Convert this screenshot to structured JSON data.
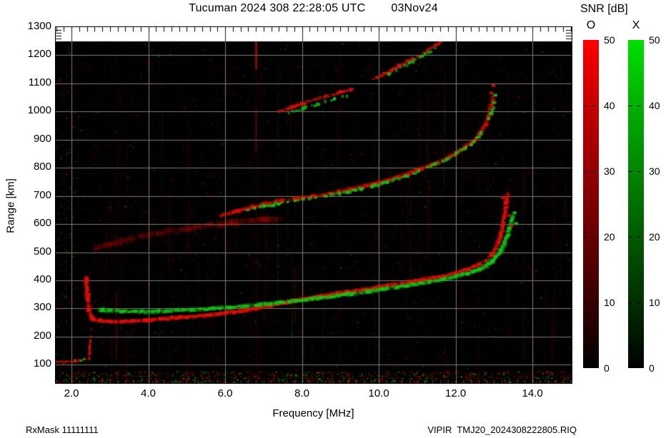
{
  "title": {
    "main": "Tucuman 2024 308 22:28:05 UTC",
    "date": "03Nov24"
  },
  "footer": {
    "left": "RxMask 11111111",
    "right": "VIPIR  TMJ20_2024308222805.RIQ"
  },
  "legend": {
    "title": "SNR [dB]",
    "bars": [
      {
        "label": "O",
        "color": "#ff0000",
        "ticks": [
          "50",
          "40",
          "30",
          "20",
          "10",
          "0"
        ]
      },
      {
        "label": "X",
        "color": "#00e000",
        "ticks": [
          "50",
          "40",
          "30",
          "20",
          "10",
          "0"
        ]
      }
    ]
  },
  "chart_data": {
    "type": "heatmap",
    "title": "Tucuman 2024 308 22:28:05 UTC",
    "date": "03Nov24",
    "xlabel": "Frequency [MHz]",
    "ylabel": "Range [km]",
    "xlim": [
      1.59,
      15.02
    ],
    "ylim": [
      35,
      1300
    ],
    "xticks": [
      2,
      4,
      6,
      8,
      10,
      12,
      14
    ],
    "xtick_labels": [
      "2.0",
      "4.0",
      "6.0",
      "8.0",
      "10.0",
      "12.0",
      "14.0"
    ],
    "yticks": [
      100,
      200,
      300,
      400,
      500,
      600,
      700,
      800,
      900,
      1000,
      1100,
      1200,
      1300
    ],
    "grid": true,
    "grid_color": "#7d7d7d",
    "background": "#000000",
    "colorbar": {
      "label": "SNR [dB]",
      "range": [
        0,
        50
      ],
      "o_color": "#ff0000",
      "x_color": "#00e000"
    },
    "colors": {
      "o": "#e01008",
      "x": "#17c417",
      "o_noise": "#c80000",
      "x_noise": "#00b400"
    },
    "noise": {
      "seed": 20241103,
      "specks": 2600,
      "bottom_band": 1300,
      "striations": 110,
      "left_band": 160
    },
    "traces": [
      {
        "name": "F-hop1-O",
        "mode": "O",
        "w": 5,
        "h": 4,
        "step": 3,
        "jitter": 1.2,
        "alpha": 0.95,
        "gap": 0.04,
        "halo": true,
        "points": [
          [
            2.38,
            408
          ],
          [
            2.4,
            372
          ],
          [
            2.43,
            330
          ],
          [
            2.46,
            296
          ],
          [
            2.5,
            272
          ],
          [
            2.56,
            262
          ],
          [
            2.75,
            257
          ],
          [
            3.0,
            254
          ],
          [
            3.3,
            253
          ],
          [
            3.6,
            255
          ],
          [
            4.0,
            259
          ],
          [
            4.4,
            263
          ],
          [
            4.8,
            268
          ],
          [
            5.2,
            272
          ],
          [
            5.6,
            277
          ],
          [
            6.0,
            283
          ],
          [
            6.4,
            290
          ],
          [
            6.8,
            299
          ],
          [
            7.2,
            310
          ],
          [
            7.6,
            322
          ],
          [
            8.0,
            333
          ],
          [
            8.4,
            342
          ],
          [
            8.8,
            351
          ],
          [
            9.2,
            359
          ],
          [
            9.6,
            367
          ],
          [
            10.0,
            376
          ],
          [
            10.4,
            385
          ],
          [
            10.8,
            394
          ],
          [
            11.2,
            403
          ],
          [
            11.6,
            413
          ],
          [
            12.0,
            426
          ],
          [
            12.3,
            439
          ],
          [
            12.6,
            455
          ],
          [
            12.8,
            472
          ],
          [
            12.95,
            492
          ],
          [
            13.05,
            514
          ],
          [
            13.12,
            538
          ],
          [
            13.18,
            565
          ],
          [
            13.23,
            594
          ],
          [
            13.27,
            625
          ],
          [
            13.3,
            655
          ],
          [
            13.32,
            682
          ],
          [
            13.34,
            706
          ]
        ]
      },
      {
        "name": "F-hop1-X",
        "mode": "X",
        "w": 5,
        "h": 4,
        "step": 3,
        "jitter": 1.2,
        "alpha": 0.9,
        "gap": 0.15,
        "halo": true,
        "points": [
          [
            2.74,
            296
          ],
          [
            3.0,
            292
          ],
          [
            3.3,
            289
          ],
          [
            3.7,
            288
          ],
          [
            4.1,
            289
          ],
          [
            4.5,
            291
          ],
          [
            4.9,
            294
          ],
          [
            5.3,
            297
          ],
          [
            5.7,
            300
          ],
          [
            6.1,
            304
          ],
          [
            6.5,
            309
          ],
          [
            6.9,
            314
          ],
          [
            7.3,
            319
          ],
          [
            7.7,
            325
          ],
          [
            8.1,
            331
          ],
          [
            8.5,
            338
          ],
          [
            8.9,
            345
          ],
          [
            9.3,
            352
          ],
          [
            9.7,
            360
          ],
          [
            10.1,
            368
          ],
          [
            10.5,
            376
          ],
          [
            10.9,
            385
          ],
          [
            11.3,
            394
          ],
          [
            11.7,
            404
          ],
          [
            12.0,
            413
          ],
          [
            12.3,
            424
          ],
          [
            12.6,
            438
          ],
          [
            12.8,
            452
          ],
          [
            12.95,
            468
          ],
          [
            13.08,
            487
          ],
          [
            13.18,
            508
          ],
          [
            13.27,
            532
          ],
          [
            13.34,
            558
          ],
          [
            13.4,
            586
          ],
          [
            13.45,
            612
          ],
          [
            13.49,
            636
          ]
        ]
      },
      {
        "name": "F-hop2-diffuse-O",
        "mode": "O",
        "w": 10,
        "h": 7,
        "step": 4,
        "jitter": 2.6,
        "alpha": 0.2,
        "gap": 0.15,
        "points": [
          [
            2.62,
            512
          ],
          [
            2.9,
            524
          ],
          [
            3.2,
            536
          ],
          [
            3.5,
            546
          ],
          [
            3.8,
            555
          ],
          [
            4.1,
            563
          ],
          [
            4.4,
            570
          ],
          [
            4.7,
            577
          ],
          [
            5.0,
            583
          ],
          [
            5.3,
            589
          ],
          [
            5.6,
            594
          ],
          [
            5.9,
            599
          ],
          [
            6.2,
            604
          ],
          [
            6.5,
            608
          ],
          [
            6.8,
            613
          ],
          [
            7.1,
            617
          ],
          [
            7.4,
            622
          ]
        ]
      },
      {
        "name": "F-hop2-O",
        "mode": "O",
        "w": 5,
        "h": 4,
        "step": 3,
        "jitter": 1.4,
        "alpha": 0.8,
        "gap": 0.12,
        "halo": true,
        "points": [
          [
            5.9,
            630
          ],
          [
            6.3,
            646
          ],
          [
            6.7,
            661
          ],
          [
            7.1,
            673
          ],
          [
            7.5,
            683
          ],
          [
            7.9,
            691
          ],
          [
            8.3,
            699
          ],
          [
            8.7,
            708
          ],
          [
            9.1,
            719
          ],
          [
            9.5,
            731
          ],
          [
            9.9,
            744
          ],
          [
            10.3,
            759
          ],
          [
            10.7,
            776
          ],
          [
            11.1,
            796
          ],
          [
            11.5,
            818
          ],
          [
            11.9,
            844
          ],
          [
            12.2,
            868
          ],
          [
            12.45,
            894
          ],
          [
            12.65,
            924
          ],
          [
            12.78,
            956
          ],
          [
            12.87,
            990
          ],
          [
            12.93,
            1022
          ],
          [
            12.97,
            1050
          ]
        ]
      },
      {
        "name": "F-hop2-X",
        "mode": "X",
        "w": 5,
        "h": 4,
        "step": 4,
        "jitter": 1.2,
        "alpha": 0.9,
        "gap": 0.3,
        "points": [
          [
            6.6,
            652
          ],
          [
            7.0,
            663
          ],
          [
            7.4,
            673
          ],
          [
            7.8,
            682
          ],
          [
            8.2,
            690
          ],
          [
            8.6,
            699
          ],
          [
            9.0,
            709
          ],
          [
            9.4,
            721
          ],
          [
            9.8,
            734
          ],
          [
            10.2,
            749
          ],
          [
            10.6,
            766
          ],
          [
            11.0,
            786
          ],
          [
            11.4,
            808
          ],
          [
            11.8,
            834
          ],
          [
            12.1,
            858
          ],
          [
            12.4,
            884
          ],
          [
            12.6,
            912
          ],
          [
            12.75,
            942
          ],
          [
            12.87,
            974
          ],
          [
            12.95,
            1005
          ],
          [
            13.0,
            1032
          ]
        ]
      },
      {
        "name": "F-hop3a-O",
        "mode": "O",
        "w": 5,
        "h": 4,
        "step": 3,
        "jitter": 1.3,
        "alpha": 0.85,
        "gap": 0.1,
        "points": [
          [
            7.42,
            1000
          ],
          [
            7.8,
            1018
          ],
          [
            8.2,
            1036
          ],
          [
            8.6,
            1052
          ],
          [
            9.0,
            1068
          ],
          [
            9.3,
            1082
          ]
        ]
      },
      {
        "name": "F-hop3a-X",
        "mode": "X",
        "w": 4,
        "h": 4,
        "step": 4,
        "jitter": 1.2,
        "alpha": 0.85,
        "gap": 0.35,
        "points": [
          [
            7.65,
            995
          ],
          [
            8.05,
            1012
          ],
          [
            8.45,
            1028
          ],
          [
            8.85,
            1044
          ],
          [
            9.15,
            1056
          ]
        ]
      },
      {
        "name": "F-hop3b-O",
        "mode": "O",
        "w": 5,
        "h": 4,
        "step": 3,
        "jitter": 1.3,
        "alpha": 0.85,
        "gap": 0.1,
        "points": [
          [
            9.88,
            1116
          ],
          [
            10.2,
            1138
          ],
          [
            10.55,
            1162
          ],
          [
            10.9,
            1188
          ],
          [
            11.2,
            1212
          ],
          [
            11.5,
            1236
          ],
          [
            11.62,
            1248
          ]
        ]
      },
      {
        "name": "F-hop3b-X",
        "mode": "X",
        "w": 4,
        "h": 4,
        "step": 4,
        "jitter": 1.2,
        "alpha": 0.85,
        "gap": 0.35,
        "points": [
          [
            10.1,
            1122
          ],
          [
            10.45,
            1146
          ],
          [
            10.8,
            1172
          ],
          [
            11.15,
            1198
          ],
          [
            11.45,
            1224
          ]
        ]
      },
      {
        "name": "E-layer-O",
        "mode": "O",
        "w": 4,
        "h": 3,
        "step": 3,
        "jitter": 1.2,
        "alpha": 0.75,
        "gap": 0.1,
        "points": [
          [
            1.6,
            108
          ],
          [
            1.85,
            110
          ],
          [
            2.1,
            113
          ],
          [
            2.3,
            116
          ],
          [
            2.43,
            120
          ]
        ]
      },
      {
        "name": "E-layer-X",
        "mode": "X",
        "w": 3,
        "h": 3,
        "step": 4,
        "jitter": 1.2,
        "alpha": 0.8,
        "gap": 0.45,
        "points": [
          [
            2.02,
            112
          ],
          [
            2.18,
            115
          ],
          [
            2.33,
            119
          ],
          [
            2.44,
            124
          ]
        ]
      },
      {
        "name": "E-cusp-O",
        "mode": "O",
        "w": 3,
        "h": 4,
        "step": 3,
        "jitter": 0.8,
        "alpha": 0.8,
        "gap": 0.08,
        "points": [
          [
            2.46,
            124
          ],
          [
            2.47,
            142
          ],
          [
            2.48,
            162
          ],
          [
            2.49,
            182
          ],
          [
            2.5,
            198
          ]
        ]
      },
      {
        "name": "E-cusp-faint-O",
        "mode": "O",
        "w": 2,
        "h": 4,
        "step": 4,
        "jitter": 0.8,
        "alpha": 0.35,
        "gap": 0.25,
        "points": [
          [
            2.5,
            202
          ],
          [
            2.51,
            226
          ],
          [
            2.53,
            252
          ]
        ]
      }
    ],
    "dots": [
      {
        "f": 13.38,
        "km": 630,
        "mode": "O"
      },
      {
        "f": 13.44,
        "km": 594,
        "mode": "O"
      },
      {
        "f": 13.22,
        "km": 695,
        "mode": "O"
      },
      {
        "f": 13.52,
        "km": 640,
        "mode": "X"
      },
      {
        "f": 13.56,
        "km": 602,
        "mode": "X"
      },
      {
        "f": 12.92,
        "km": 1066,
        "mode": "O"
      },
      {
        "f": 12.97,
        "km": 1092,
        "mode": "O"
      },
      {
        "f": 13.02,
        "km": 1058,
        "mode": "X"
      }
    ],
    "rfi_stripes": [
      {
        "f": 6.78,
        "width": 3,
        "alpha": 0.09,
        "hot": [
          [
            1150,
            1250,
            0.55
          ],
          [
            860,
            1010,
            0.22
          ]
        ]
      },
      {
        "f": 3.15,
        "width": 2,
        "alpha": 0.06,
        "hot": [
          [
            120,
            350,
            0.2
          ]
        ]
      },
      {
        "f": 7.8,
        "width": 2,
        "alpha": 0.05,
        "hot": [
          [
            250,
            450,
            0.14
          ]
        ]
      },
      {
        "f": 8.93,
        "width": 2,
        "alpha": 0.05,
        "hot": []
      },
      {
        "f": 12.55,
        "width": 1,
        "alpha": 0.05,
        "hot": []
      }
    ]
  }
}
